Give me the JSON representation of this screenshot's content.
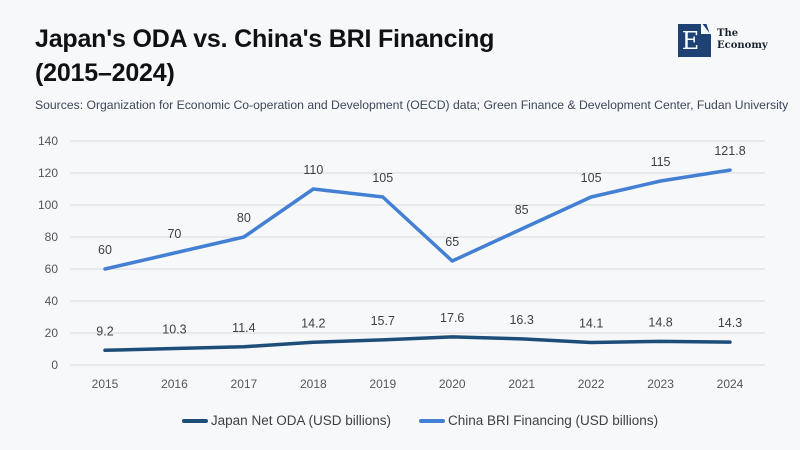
{
  "header": {
    "title_line1": "Japan's ODA vs. China's BRI Financing",
    "title_line2": "(2015–2024)",
    "sources": "Sources: Organization for Economic Co-operation and Development (OECD) data; Green Finance & Development Center, Fudan University"
  },
  "logo": {
    "letter": "E",
    "name_line1": "The",
    "name_line2": "Economy",
    "square_color": "#1e4274",
    "text_color": "#1b2430"
  },
  "colors": {
    "background": "#f7f8fa",
    "gridline": "#d9dadd",
    "axis_label": "#54565c",
    "data_label": "#3d3f42"
  },
  "chart_data": {
    "type": "line",
    "title": "Japan's ODA vs. China's BRI Financing (2015–2024)",
    "x": [
      "2015",
      "2016",
      "2017",
      "2018",
      "2019",
      "2020",
      "2021",
      "2022",
      "2023",
      "2024"
    ],
    "series": [
      {
        "name": "Japan Net ODA (USD billions)",
        "color": "#1d4e79",
        "values": [
          9.2,
          10.3,
          11.4,
          14.2,
          15.7,
          17.6,
          16.3,
          14.1,
          14.8,
          14.3
        ]
      },
      {
        "name": "China BRI Financing (USD billions)",
        "color": "#4380d4",
        "values": [
          60,
          70,
          80,
          110,
          105,
          65,
          85,
          105,
          115,
          121.8
        ]
      }
    ],
    "ylim": [
      0,
      140
    ],
    "ytick_step": 20,
    "grid": "horizontal",
    "legend_position": "bottom",
    "data_labels": true
  }
}
